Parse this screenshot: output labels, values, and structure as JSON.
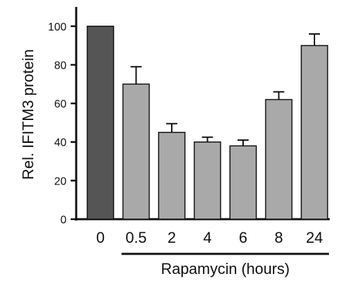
{
  "chart_data": {
    "type": "bar",
    "title": "",
    "ylabel": "Rel. IFITM3 protein",
    "xlabel": "",
    "ylim": [
      0,
      110
    ],
    "yticks": [
      0,
      20,
      40,
      60,
      80,
      100
    ],
    "grid": false,
    "legend": "none",
    "categories": [
      "0",
      "0.5",
      "2",
      "4",
      "6",
      "8",
      "24"
    ],
    "series": [
      {
        "values": [
          100,
          70,
          45,
          40,
          38,
          62,
          90
        ],
        "errors": [
          0,
          9,
          4.5,
          2.5,
          3,
          4,
          6
        ]
      }
    ],
    "bar_colors": [
      "#555555",
      "#a9a9a9",
      "#a9a9a9",
      "#a9a9a9",
      "#a9a9a9",
      "#a9a9a9",
      "#a9a9a9"
    ],
    "group_label": {
      "text": "Rapamycin (hours)",
      "from_category": "0.5",
      "to_category": "24"
    }
  }
}
